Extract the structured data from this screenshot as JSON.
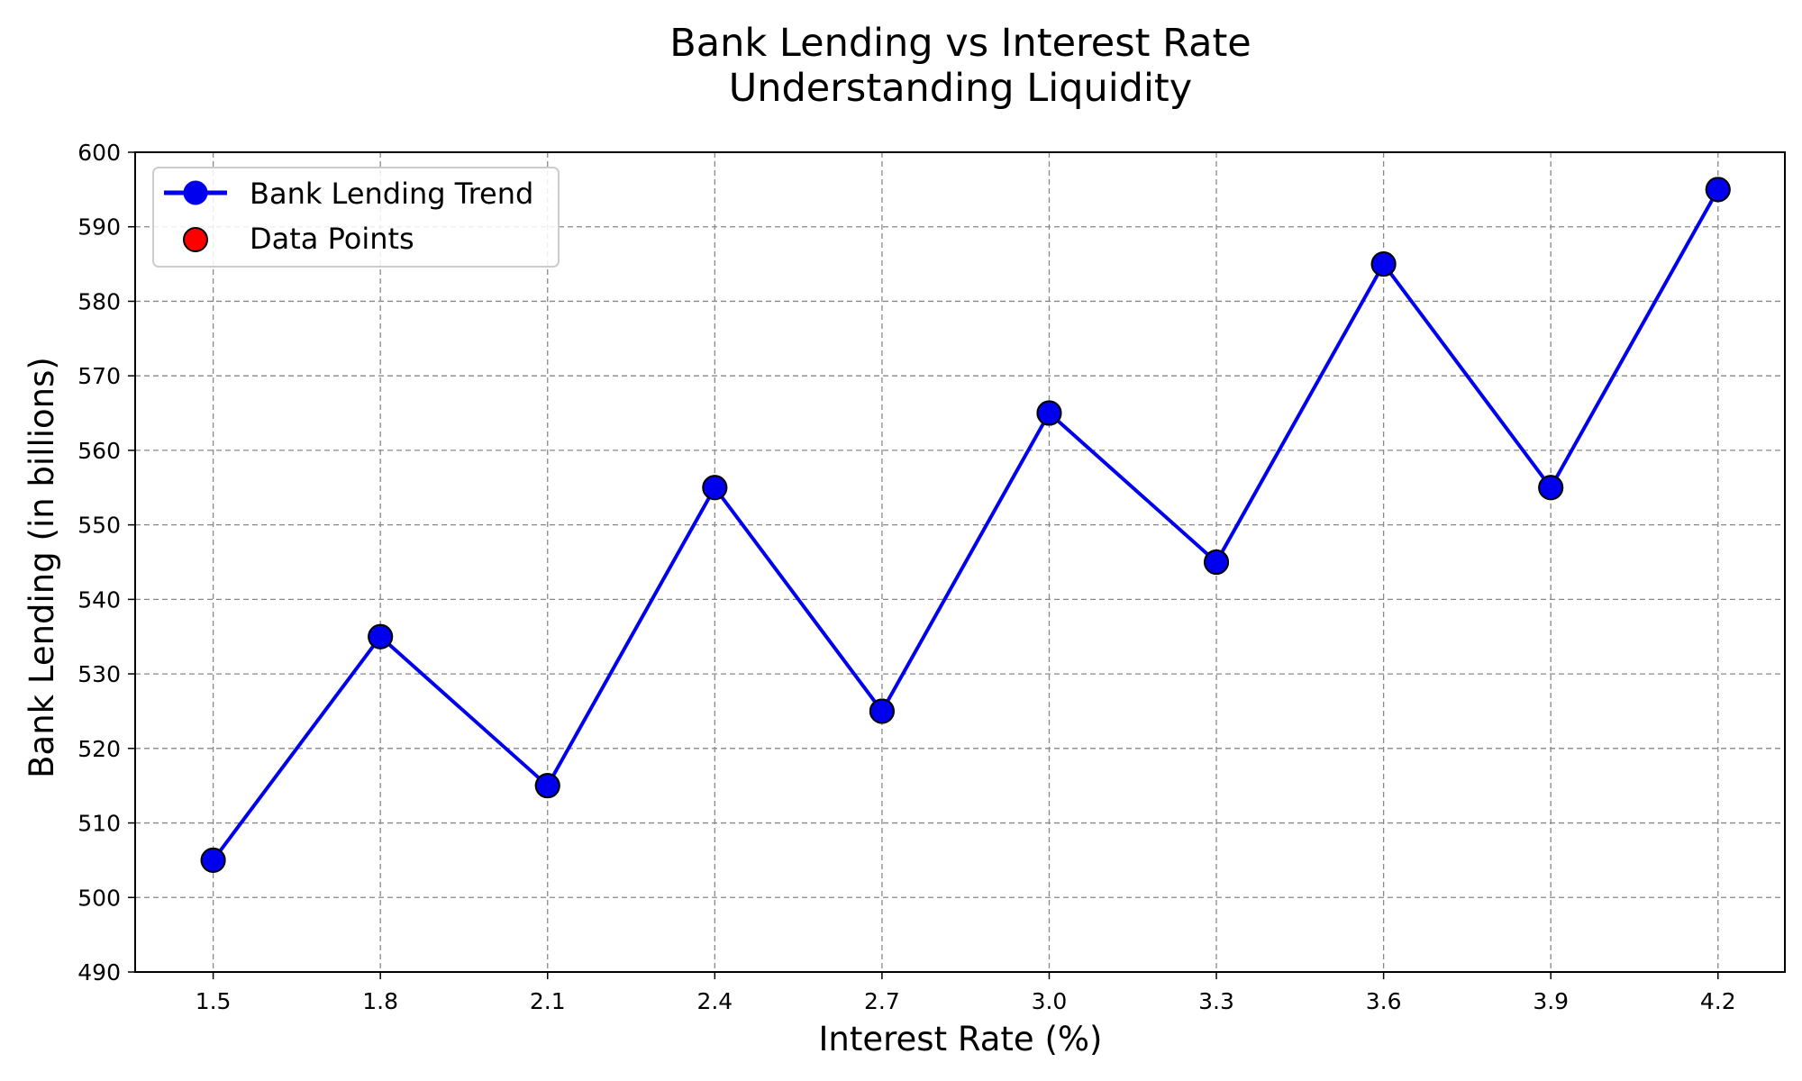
{
  "chart_data": {
    "type": "line",
    "title": "Bank Lending vs Interest Rate",
    "subtitle": "Understanding Liquidity",
    "xlabel": "Interest Rate (%)",
    "ylabel": "Bank Lending (in billions)",
    "x": [
      1.5,
      1.8,
      2.1,
      2.4,
      2.7,
      3.0,
      3.3,
      3.6,
      3.9,
      4.2
    ],
    "x_tick_labels": [
      "1.5",
      "1.8",
      "2.1",
      "2.4",
      "2.7",
      "3.0",
      "3.3",
      "3.6",
      "3.9",
      "4.2"
    ],
    "y_ticks": [
      490,
      500,
      510,
      520,
      530,
      540,
      550,
      560,
      570,
      580,
      590,
      600
    ],
    "xlim": [
      1.36,
      4.32
    ],
    "ylim": [
      490,
      600
    ],
    "grid": true,
    "legend_position": "upper-left",
    "series": [
      {
        "name": "Bank Lending Trend",
        "kind": "line-with-markers",
        "color": "#0000ee",
        "values": [
          505,
          535,
          515,
          555,
          525,
          565,
          545,
          585,
          555,
          595
        ]
      },
      {
        "name": "Data Points",
        "kind": "scatter",
        "color": "#ff0000",
        "values": [
          505,
          535,
          515,
          555,
          525,
          565,
          545,
          585,
          555,
          595
        ]
      }
    ]
  }
}
